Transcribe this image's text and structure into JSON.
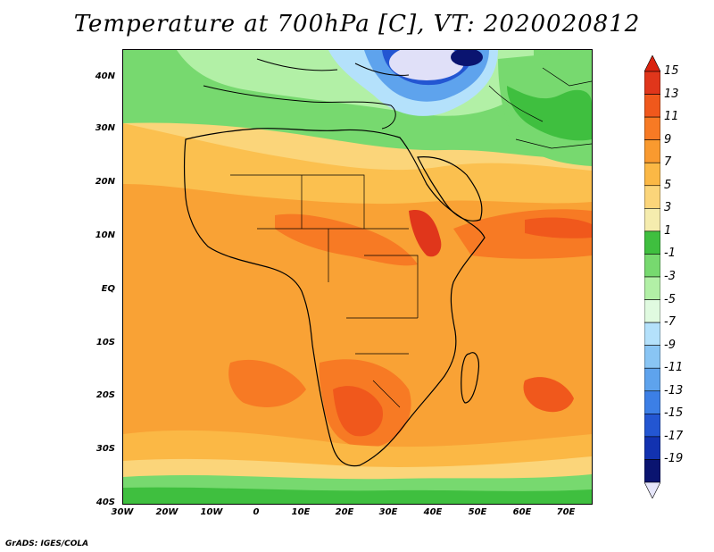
{
  "title": "Temperature at 700hPa [C], VT: 2020020812",
  "credit": "GrADS: IGES/COLA",
  "lat_labels": [
    "40N",
    "30N",
    "20N",
    "10N",
    "EQ",
    "10S",
    "20S",
    "30S",
    "40S"
  ],
  "lon_labels": [
    "30W",
    "20W",
    "10W",
    "0",
    "10E",
    "20E",
    "30E",
    "40E",
    "50E",
    "60E",
    "70E"
  ],
  "colorbar": {
    "labels": [
      "15",
      "13",
      "11",
      "9",
      "7",
      "5",
      "3",
      "1",
      "-1",
      "-3",
      "-5",
      "-7",
      "-9",
      "-11",
      "-13",
      "-15",
      "-17",
      "-19"
    ],
    "colors": [
      "#e0361b",
      "#f0581c",
      "#f77a24",
      "#f99a2f",
      "#fbb845",
      "#fbd57a",
      "#f5ecae",
      "#3fbf3f",
      "#77d96f",
      "#b2f0a6",
      "#e0fae0",
      "#b4e1fb",
      "#89c5f4",
      "#5ea3ed",
      "#3c7fe6",
      "#2356d2",
      "#1232b0",
      "#0a1470"
    ],
    "top_color": "#d9230f",
    "bottom_color": "#e6e6fa"
  }
}
